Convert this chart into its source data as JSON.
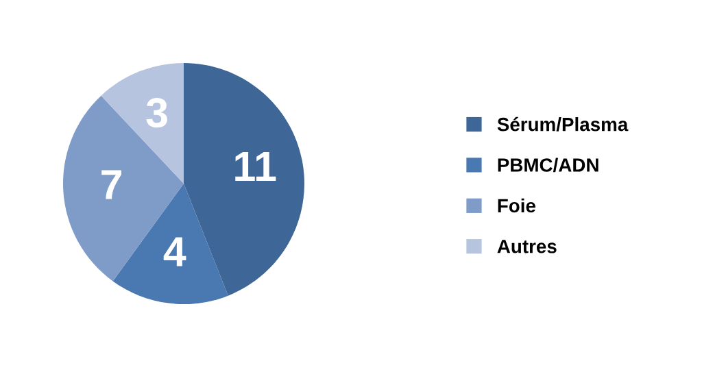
{
  "chart_data": {
    "type": "pie",
    "categories": [
      "Sérum/Plasma",
      "PBMC/ADN",
      "Foie",
      "Autres"
    ],
    "values": [
      11,
      4,
      7,
      3
    ],
    "colors": [
      "#3e6697",
      "#4a78b0",
      "#7f9cc9",
      "#b6c4df"
    ],
    "data_labels": true,
    "legend": "right"
  }
}
